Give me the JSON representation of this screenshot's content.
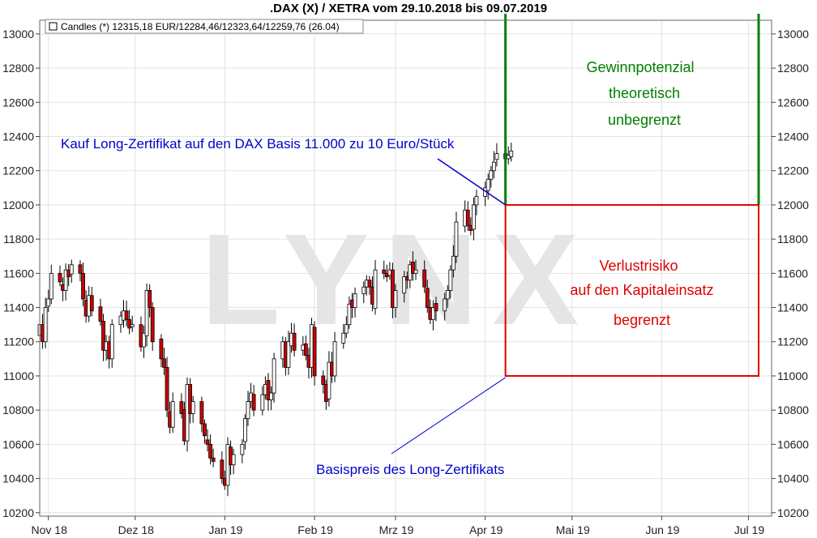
{
  "chart_data": {
    "type": "candlestick",
    "title": ".DAX (X) / XETRA vom 29.10.2018 bis 09.07.2019",
    "legend": "Candles (*) 12315,18 EUR/12284,46/12323,64/12259,76 (26.04)",
    "watermark": "LYNX",
    "y_ticks": [
      13000,
      12800,
      12600,
      12400,
      12200,
      12000,
      11800,
      11600,
      11400,
      11200,
      11000,
      10800,
      10600,
      10400,
      10200
    ],
    "ylim": [
      10180,
      13080
    ],
    "x_ticks": [
      {
        "label": "Nov 18",
        "date": "2018-11-01"
      },
      {
        "label": "Dez 18",
        "date": "2018-12-01"
      },
      {
        "label": "Jan 19",
        "date": "2019-01-01"
      },
      {
        "label": "Feb 19",
        "date": "2019-02-01"
      },
      {
        "label": "Mrz 19",
        "date": "2019-03-01"
      },
      {
        "label": "Apr 19",
        "date": "2019-04-01"
      },
      {
        "label": "Mai 19",
        "date": "2019-05-01"
      },
      {
        "label": "Jun 19",
        "date": "2019-06-01"
      },
      {
        "label": "Jul 19",
        "date": "2019-07-01"
      }
    ],
    "xlim": [
      "2018-10-29",
      "2019-07-09"
    ],
    "up_color": "#ffffff",
    "down_color": "#cc0000",
    "close_series": [
      11300,
      11200,
      11400,
      11450,
      11600,
      11550,
      11500,
      11620,
      11580,
      11650,
      11600,
      11450,
      11350,
      11470,
      11380,
      11320,
      11150,
      11200,
      11100,
      11300,
      11350,
      11380,
      11330,
      11280,
      11300,
      11170,
      11250,
      11500,
      11400,
      11200,
      11100,
      11050,
      10800,
      10700,
      10850,
      10780,
      10620,
      10950,
      10780,
      10850,
      10720,
      10650,
      10600,
      10520,
      10500,
      10400,
      10360,
      10600,
      10480,
      10540,
      10600,
      10750,
      10850,
      10900,
      10800,
      10890,
      10950,
      10860,
      10900,
      11100,
      11200,
      11050,
      11200,
      11250,
      11150,
      11180,
      11120,
      11050,
      11300,
      11000,
      10950,
      10850,
      11080,
      11000,
      11200,
      11250,
      11300,
      11420,
      11400,
      11480,
      11520,
      11560,
      11520,
      11420,
      11620,
      11600,
      11580,
      11620,
      11400,
      11500,
      11580,
      11560,
      11650,
      11600,
      11620,
      11520,
      11400,
      11330,
      11400,
      11380,
      11450,
      11500,
      11620,
      11700,
      11900,
      11970,
      11880,
      11850,
      12000,
      12050,
      12100,
      12150,
      12200,
      12250,
      12300,
      12270,
      12290,
      12315
    ]
  },
  "annotations": {
    "buy_label": "Kauf Long-Zertifikat auf den DAX Basis 11.000 zu 10 Euro/Stück",
    "strike_label": "Basispreis des Long-Zertifikats",
    "gain_lines": [
      "Gewinnpotenzial",
      "theoretisch",
      "unbegrenzt"
    ],
    "loss_lines": [
      "Verlustrisiko",
      "auf den Kapitaleinsatz",
      "begrenzt"
    ],
    "buy_level": 12000,
    "strike_level": 11000,
    "buy_date": "2019-04-08",
    "zone_end_date": "2019-07-09"
  },
  "colors": {
    "blue": "#0000cc",
    "green": "#008000",
    "red": "#dd0000",
    "grid": "#e2e2e2"
  }
}
